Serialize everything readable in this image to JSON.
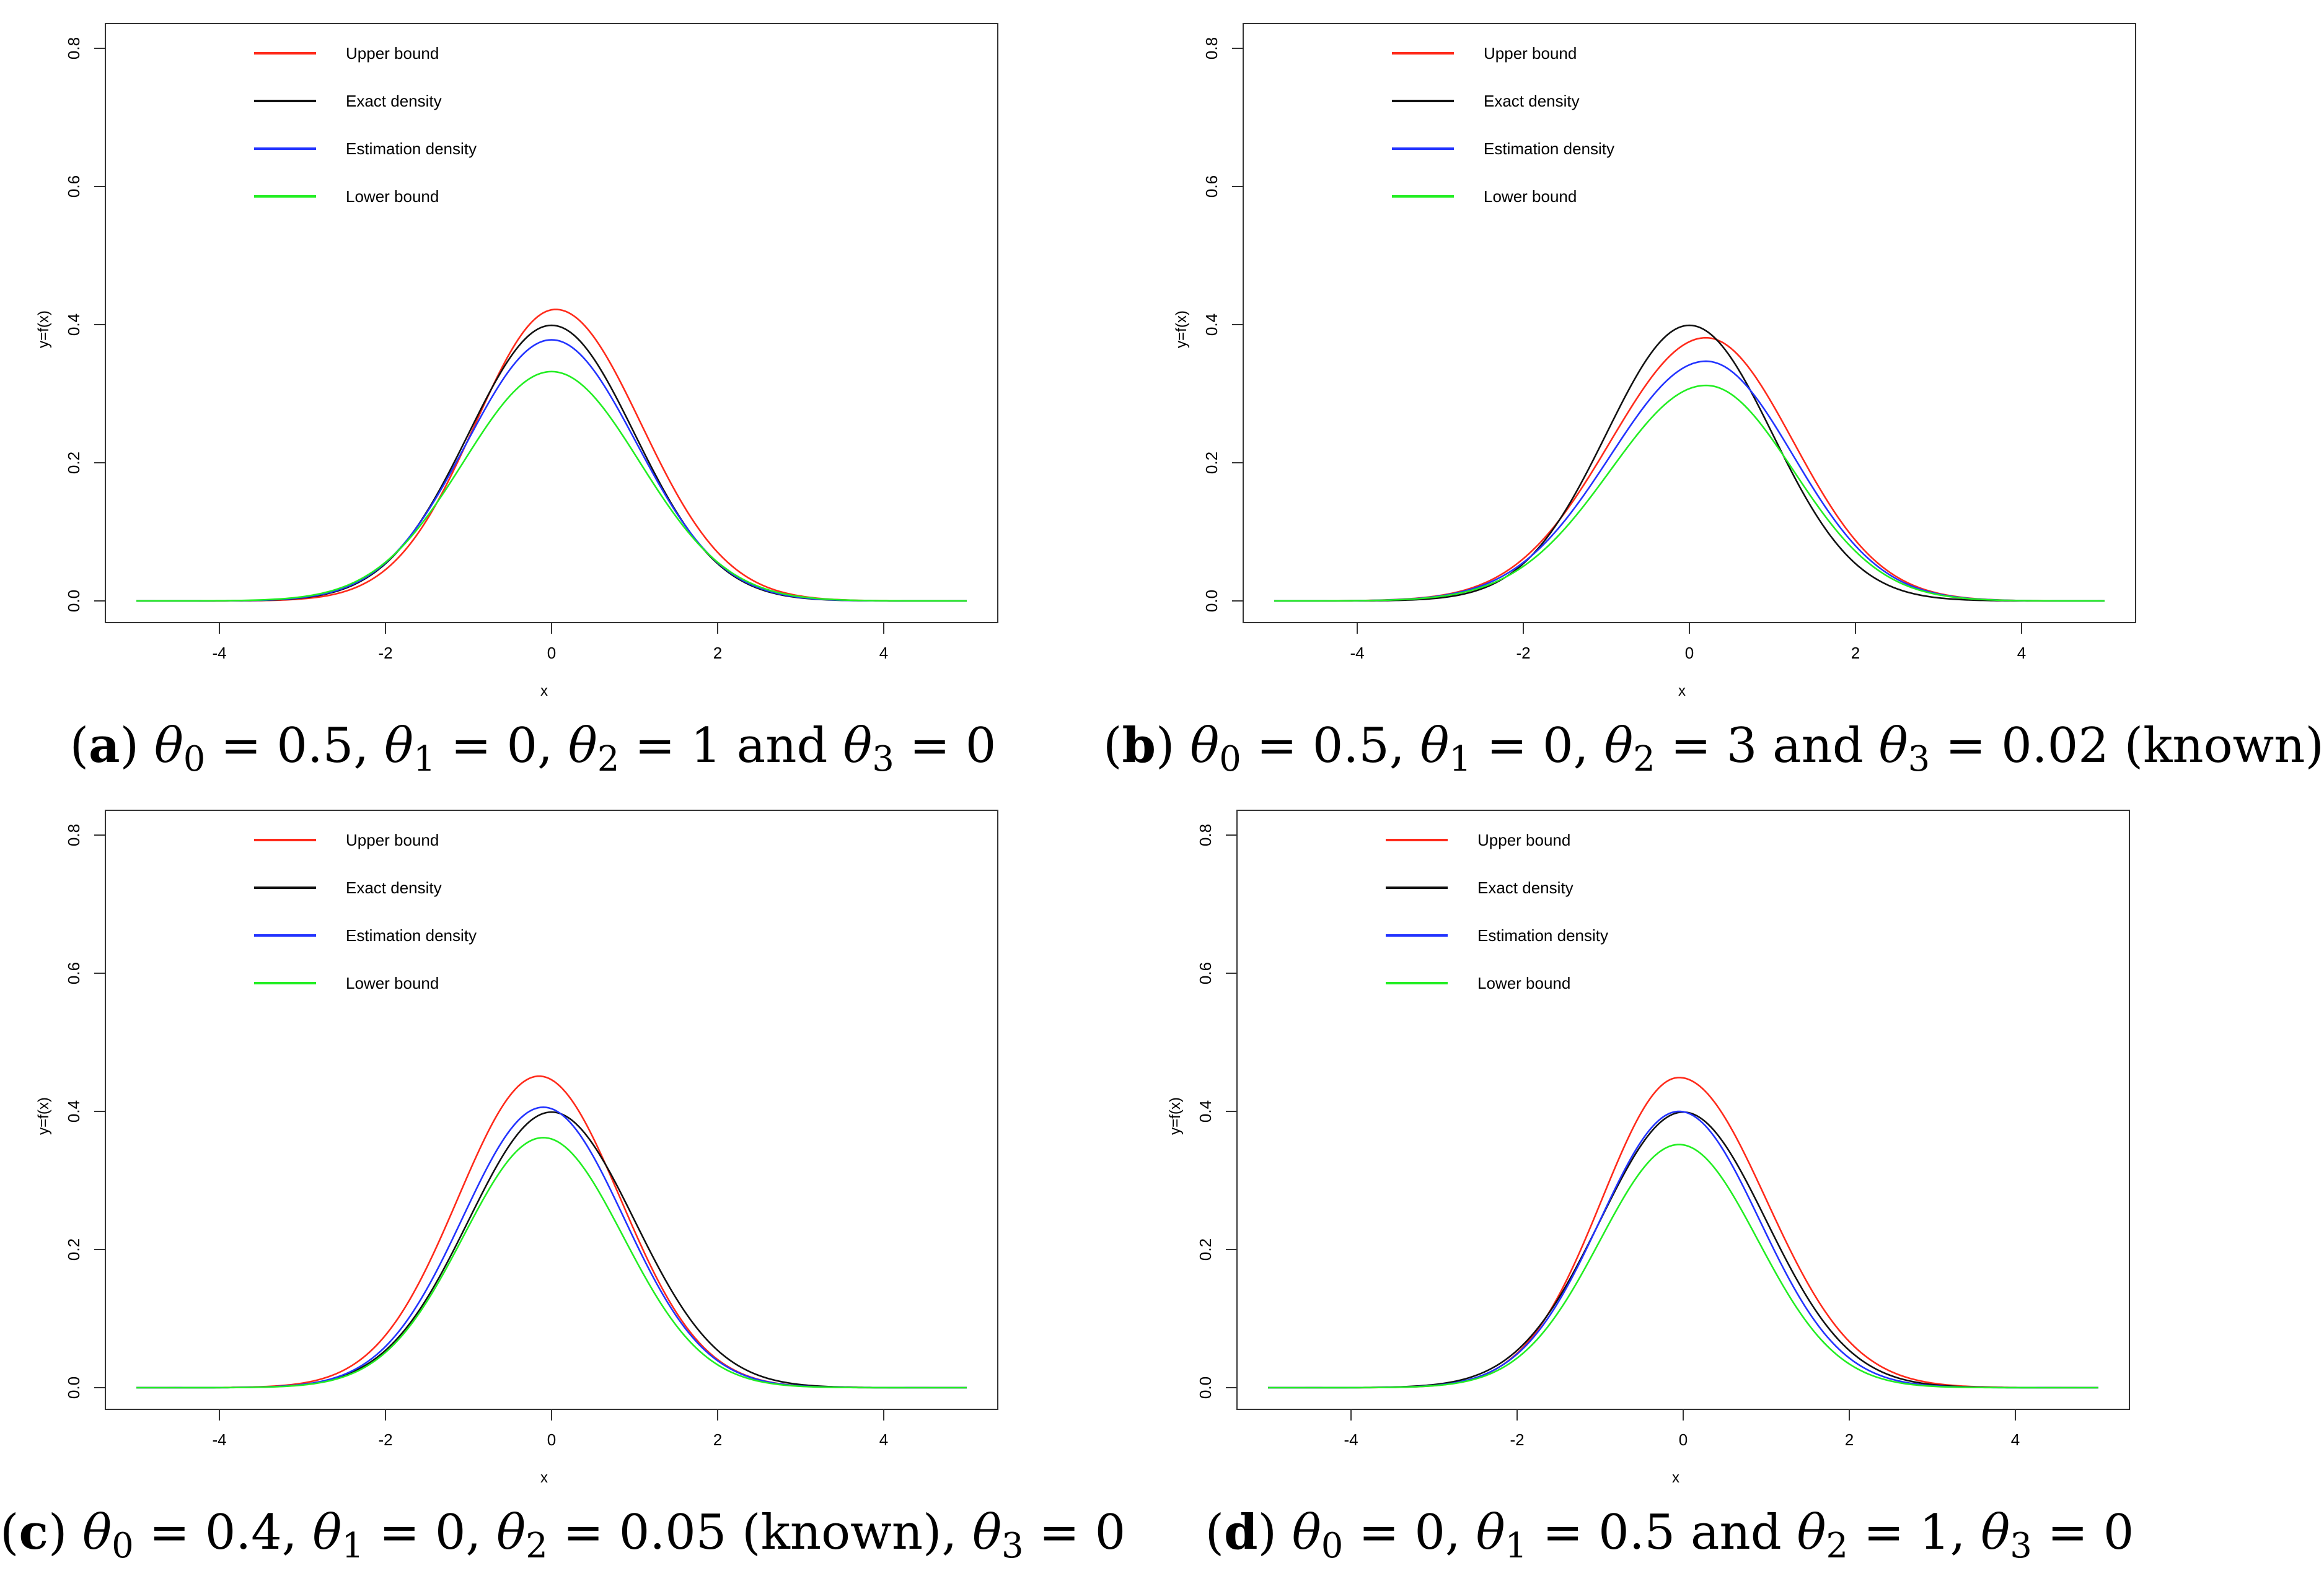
{
  "chart_data": [
    {
      "type": "line",
      "panel_id": "a",
      "caption": {
        "letter": "a",
        "math": "θ0 = 0.5, θ1 = 0, θ2 = 1 and θ3 = 0"
      },
      "xlabel": "x",
      "ylabel": "y=f(x)",
      "xlim": [
        -5,
        5
      ],
      "ylim": [
        0,
        0.8
      ],
      "xticks": [
        "-4",
        "-2",
        "0",
        "2",
        "4"
      ],
      "yticks": [
        "0.0",
        "0.2",
        "0.4",
        "0.6",
        "0.8"
      ],
      "legend_position": "top-left",
      "series": [
        {
          "name": "Upper bound",
          "color": "#ff2a1a",
          "peak": 0.422,
          "mu": 0.05,
          "sigmaL": 0.97,
          "sigmaR": 1.03
        },
        {
          "name": "Exact density",
          "color": "#111111",
          "peak": 0.399,
          "mu": 0.0,
          "sigmaL": 1.0,
          "sigmaR": 1.0
        },
        {
          "name": "Estimation density",
          "color": "#2233ff",
          "peak": 0.378,
          "mu": 0.0,
          "sigmaL": 1.02,
          "sigmaR": 1.02
        },
        {
          "name": "Lower bound",
          "color": "#22ee22",
          "peak": 0.332,
          "mu": 0.0,
          "sigmaL": 1.06,
          "sigmaR": 1.06
        }
      ]
    },
    {
      "type": "line",
      "panel_id": "b",
      "caption": {
        "letter": "b",
        "math": "θ0 = 0.5, θ1 = 0, θ2 = 3 and θ3 = 0.02 (known)"
      },
      "xlabel": "x",
      "ylabel": "y=f(x)",
      "xlim": [
        -5,
        5
      ],
      "ylim": [
        0,
        0.8
      ],
      "xticks": [
        "-4",
        "-2",
        "0",
        "2",
        "4"
      ],
      "yticks": [
        "0.0",
        "0.2",
        "0.4",
        "0.6",
        "0.8"
      ],
      "legend_position": "top-left",
      "series": [
        {
          "name": "Upper bound",
          "color": "#ff2a1a",
          "peak": 0.381,
          "mu": 0.2,
          "sigmaL": 1.15,
          "sigmaR": 1.05
        },
        {
          "name": "Exact density",
          "color": "#111111",
          "peak": 0.399,
          "mu": 0.0,
          "sigmaL": 1.0,
          "sigmaR": 1.0
        },
        {
          "name": "Estimation density",
          "color": "#2233ff",
          "peak": 0.347,
          "mu": 0.2,
          "sigmaL": 1.15,
          "sigmaR": 1.05
        },
        {
          "name": "Lower bound",
          "color": "#22ee22",
          "peak": 0.312,
          "mu": 0.2,
          "sigmaL": 1.15,
          "sigmaR": 1.05
        }
      ]
    },
    {
      "type": "line",
      "panel_id": "c",
      "caption": {
        "letter": "c",
        "math": "θ0 = 0.4, θ1 = 0, θ2 = 0.05 (known), θ3 = 0"
      },
      "xlabel": "x",
      "ylabel": "y=f(x)",
      "xlim": [
        -5,
        5
      ],
      "ylim": [
        0,
        0.8
      ],
      "xticks": [
        "-4",
        "-2",
        "0",
        "2",
        "4"
      ],
      "yticks": [
        "0.0",
        "0.2",
        "0.4",
        "0.6",
        "0.8"
      ],
      "legend_position": "top-left",
      "series": [
        {
          "name": "Upper bound",
          "color": "#ff2a1a",
          "peak": 0.451,
          "mu": -0.15,
          "sigmaL": 0.98,
          "sigmaR": 0.98
        },
        {
          "name": "Exact density",
          "color": "#111111",
          "peak": 0.399,
          "mu": 0.0,
          "sigmaL": 1.0,
          "sigmaR": 1.0
        },
        {
          "name": "Estimation density",
          "color": "#2233ff",
          "peak": 0.406,
          "mu": -0.1,
          "sigmaL": 0.97,
          "sigmaR": 0.97
        },
        {
          "name": "Lower bound",
          "color": "#22ee22",
          "peak": 0.362,
          "mu": -0.1,
          "sigmaL": 0.96,
          "sigmaR": 0.96
        }
      ]
    },
    {
      "type": "line",
      "panel_id": "d",
      "caption": {
        "letter": "d",
        "math": "θ0 = 0, θ1 = 0.5 and θ2 = 1, θ3 = 0"
      },
      "xlabel": "x",
      "ylabel": "y=f(x)",
      "xlim": [
        -5,
        5
      ],
      "ylim": [
        0,
        0.8
      ],
      "xticks": [
        "-4",
        "-2",
        "0",
        "2",
        "4"
      ],
      "yticks": [
        "0.0",
        "0.2",
        "0.4",
        "0.6",
        "0.8"
      ],
      "legend_position": "top-left",
      "series": [
        {
          "name": "Upper bound",
          "color": "#ff2a1a",
          "peak": 0.449,
          "mu": -0.05,
          "sigmaL": 0.93,
          "sigmaR": 1.05
        },
        {
          "name": "Exact density",
          "color": "#111111",
          "peak": 0.399,
          "mu": 0.0,
          "sigmaL": 1.0,
          "sigmaR": 1.0
        },
        {
          "name": "Estimation density",
          "color": "#2233ff",
          "peak": 0.4,
          "mu": -0.05,
          "sigmaL": 0.95,
          "sigmaR": 0.97
        },
        {
          "name": "Lower bound",
          "color": "#22ee22",
          "peak": 0.352,
          "mu": -0.05,
          "sigmaL": 0.95,
          "sigmaR": 0.95
        }
      ]
    }
  ]
}
